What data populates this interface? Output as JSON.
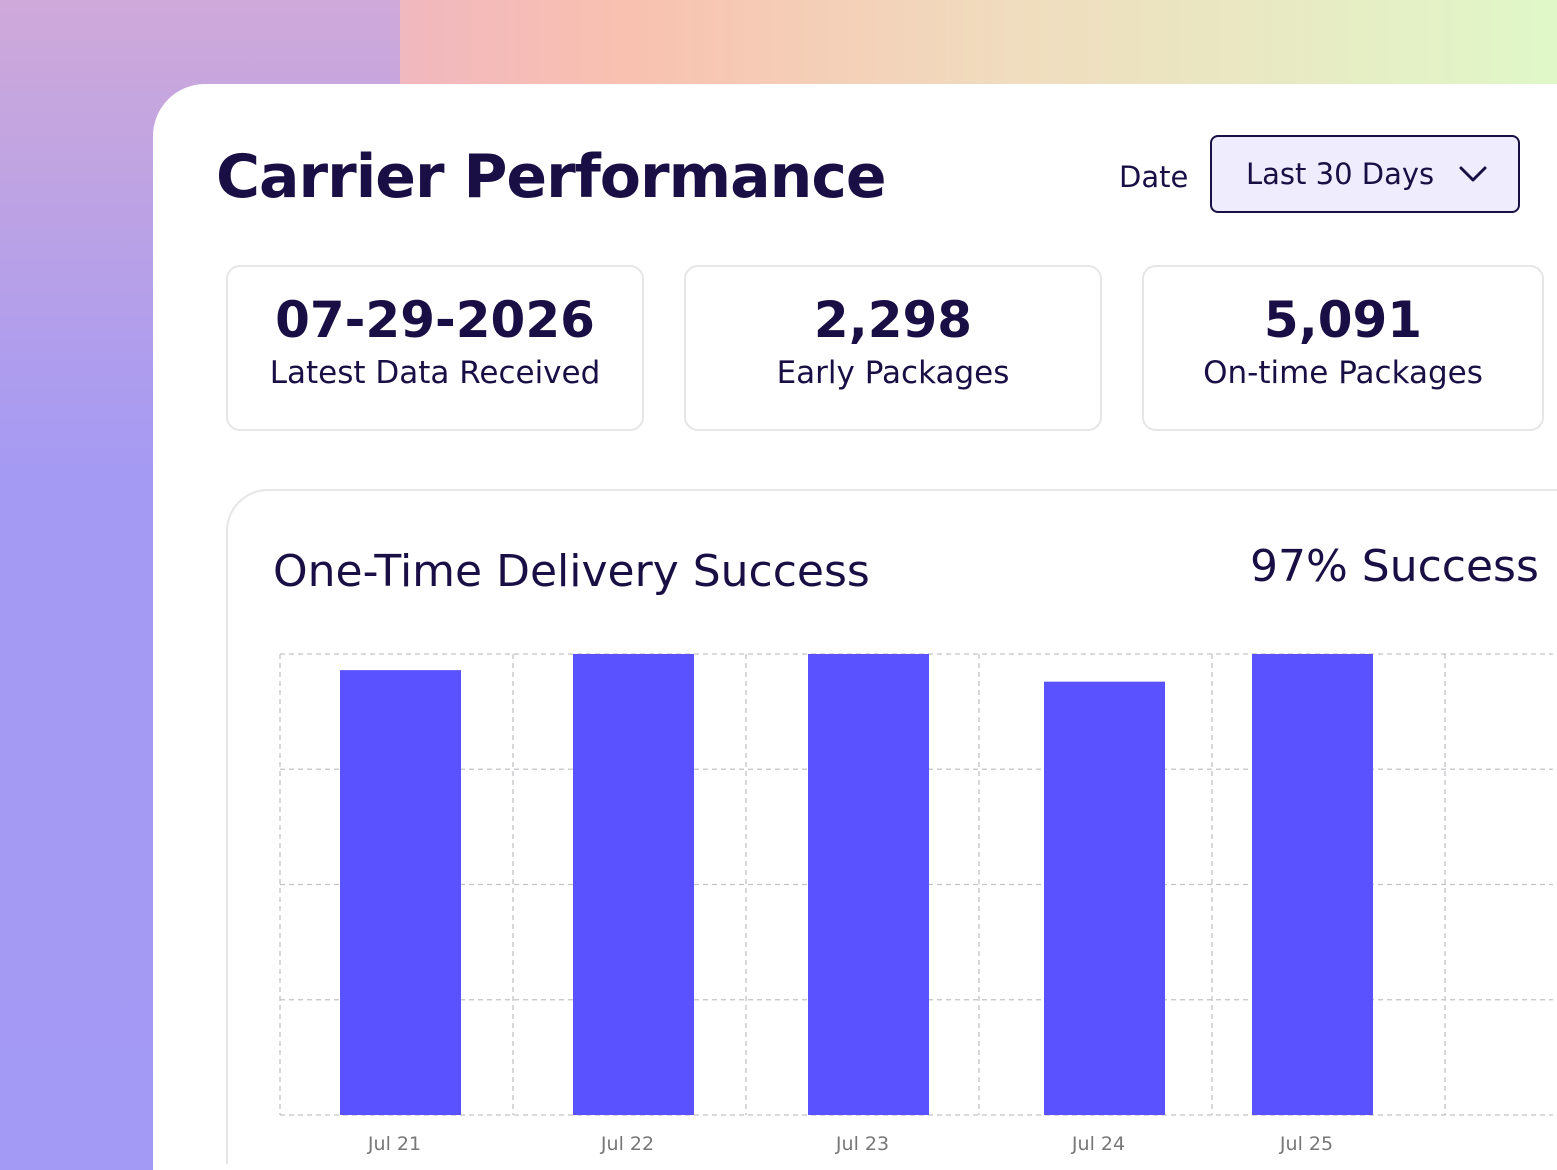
{
  "header": {
    "title": "Carrier Performance",
    "date_label": "Date",
    "date_select": "Last 30 Days"
  },
  "stats": [
    {
      "value": "07-29-2026",
      "label": "Latest Data Received"
    },
    {
      "value": "2,298",
      "label": "Early Packages"
    },
    {
      "value": "5,091",
      "label": "On-time Packages"
    }
  ],
  "chart": {
    "title": "One-Time Delivery Success",
    "summary": "97% Success"
  },
  "chart_data": {
    "type": "bar",
    "title": "One-Time Delivery Success",
    "categories": [
      "Jul 21",
      "Jul 22",
      "Jul 23",
      "Jul 24",
      "Jul 25"
    ],
    "values": [
      96.5,
      100,
      100,
      94,
      100
    ],
    "ylim": [
      0,
      100
    ],
    "grid": true,
    "bar_color": "#5b52ff"
  }
}
